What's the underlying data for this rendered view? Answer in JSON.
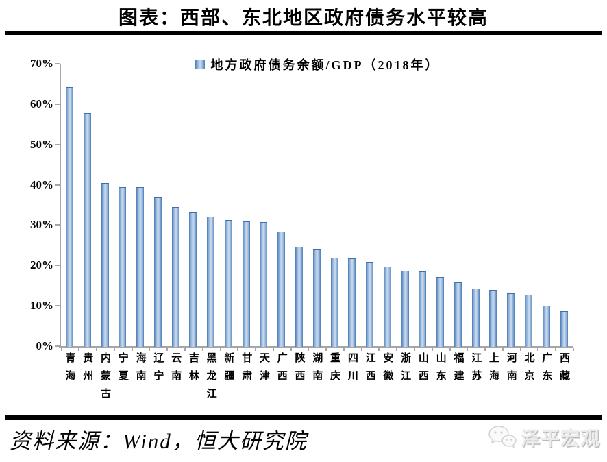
{
  "header": {
    "title": "图表：西部、东北地区政府债务水平较高"
  },
  "legend": {
    "label": "地方政府债务余额/GDP（2018年）"
  },
  "chart_data": {
    "type": "bar",
    "title": "地方政府债务余额/GDP（2018年）",
    "categories": [
      "青海",
      "贵州",
      "内蒙古",
      "宁夏",
      "海南",
      "辽宁",
      "云南",
      "吉林",
      "黑龙江",
      "新疆",
      "甘肃",
      "天津",
      "广西",
      "陕西",
      "湖南",
      "重庆",
      "四川",
      "江西",
      "安徽",
      "浙江",
      "山西",
      "山东",
      "福建",
      "江苏",
      "上海",
      "河南",
      "北京",
      "广东",
      "西藏"
    ],
    "values": [
      64.3,
      57.8,
      40.4,
      39.5,
      39.4,
      36.8,
      34.5,
      33.1,
      32.1,
      31.3,
      31.0,
      30.7,
      28.3,
      24.7,
      24.1,
      21.9,
      21.8,
      20.9,
      19.7,
      18.7,
      18.6,
      17.1,
      15.8,
      14.2,
      14.0,
      13.0,
      12.8,
      10.0,
      8.7
    ],
    "xlabel": "",
    "ylabel": "",
    "ylim": [
      0,
      70
    ],
    "ytick_labels": [
      "0%",
      "10%",
      "20%",
      "30%",
      "40%",
      "50%",
      "60%",
      "70%"
    ],
    "grid": false,
    "legend_position": "top-center",
    "bar_color_edge": "#4a7cb8",
    "bar_color_center": "#c3d5eb",
    "axis_color": "#a6a6a6"
  },
  "footer": {
    "source": "资料来源：Wind，恒大研究院",
    "brand": "泽平宏观"
  }
}
